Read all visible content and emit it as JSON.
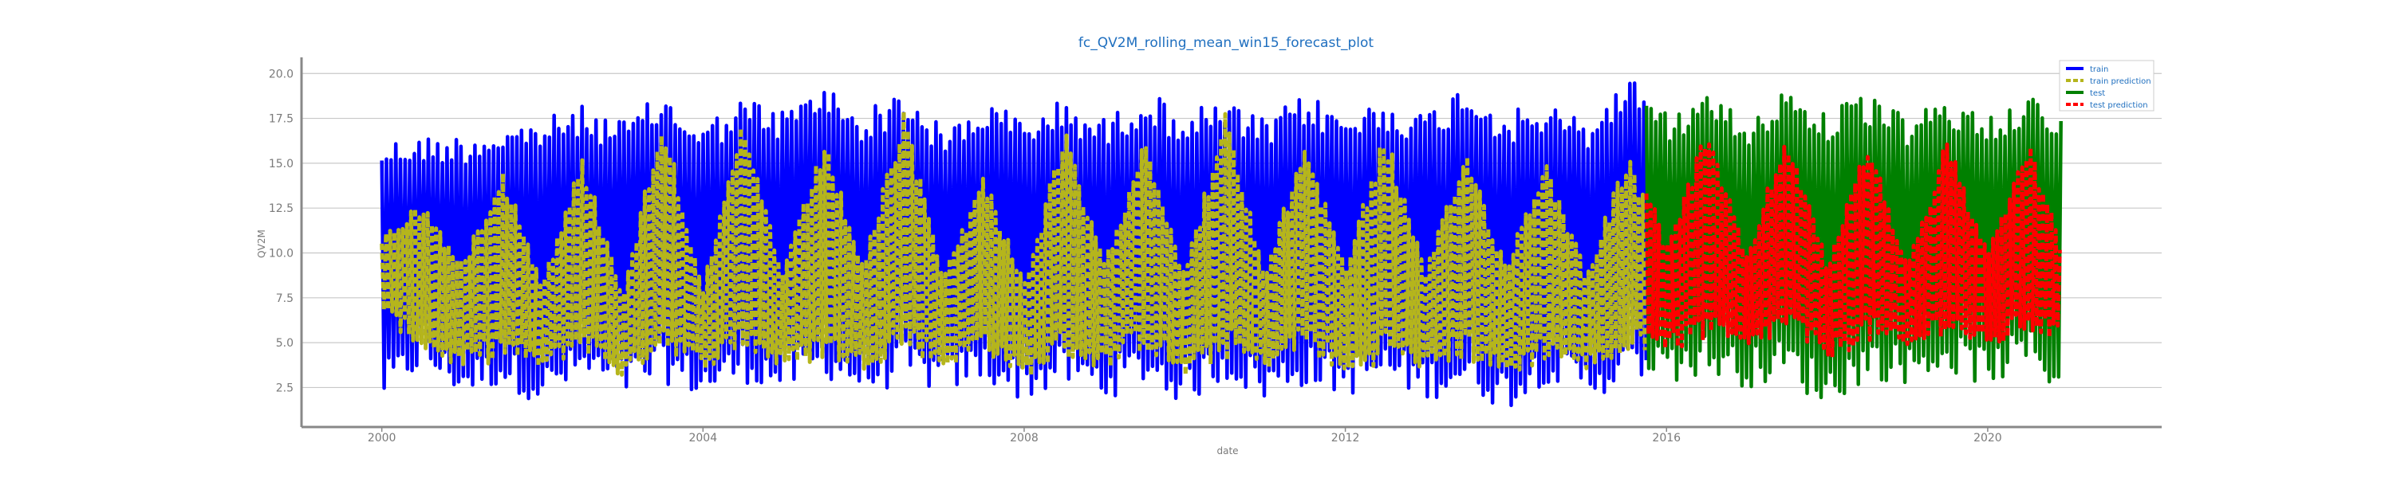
{
  "chart_data": {
    "type": "line",
    "title": "fc_QV2M_rolling_mean_win15_forecast_plot",
    "xlabel": "date",
    "ylabel": "QV2M",
    "xlim": [
      "1999-01-01",
      "2022-03-01"
    ],
    "ylim": [
      0.3,
      20.9
    ],
    "x_ticks": [
      "2000",
      "2004",
      "2008",
      "2012",
      "2016",
      "2020"
    ],
    "y_ticks": [
      "2.5",
      "5.0",
      "7.5",
      "10.0",
      "12.5",
      "15.0",
      "17.5",
      "20.0"
    ],
    "grid": "horizontal",
    "legend_position": "top-right",
    "series": [
      {
        "name": "train",
        "color": "#0000ff",
        "x": [
          "2000-01",
          "2000-07",
          "2001-01",
          "2001-07",
          "2002-01",
          "2002-07",
          "2003-01",
          "2003-07",
          "2004-01",
          "2004-07",
          "2005-01",
          "2005-07",
          "2006-01",
          "2006-07",
          "2007-01",
          "2007-07",
          "2008-01",
          "2008-07",
          "2009-01",
          "2009-07",
          "2010-01",
          "2010-07",
          "2011-01",
          "2011-07",
          "2012-01",
          "2012-07",
          "2013-01",
          "2013-07",
          "2014-01",
          "2014-07",
          "2015-01",
          "2015-07",
          "2015-10"
        ],
        "upper": [
          16.3,
          16.5,
          16.6,
          17.1,
          17.5,
          18.2,
          17.4,
          18.9,
          17.2,
          18.7,
          18.0,
          19.5,
          17.9,
          19.2,
          16.9,
          18.5,
          17.6,
          18.6,
          17.5,
          19.1,
          17.9,
          18.5,
          17.4,
          18.9,
          17.8,
          18.6,
          17.8,
          19.6,
          17.9,
          18.3,
          17.4,
          19.8,
          19.5
        ],
        "lower": [
          1.7,
          3.5,
          2.0,
          2.6,
          1.5,
          2.8,
          1.9,
          2.8,
          1.8,
          2.8,
          2.1,
          3.1,
          2.0,
          2.7,
          2.2,
          2.8,
          1.7,
          2.6,
          1.8,
          2.7,
          1.5,
          2.9,
          1.7,
          2.6,
          2.0,
          2.7,
          1.8,
          2.3,
          1.2,
          2.8,
          1.9,
          2.5,
          3.0
        ]
      },
      {
        "name": "train prediction",
        "color": "#b5b51c",
        "x": [
          "2000-01",
          "2000-07",
          "2001-01",
          "2001-07",
          "2002-01",
          "2002-07",
          "2003-01",
          "2003-07",
          "2004-01",
          "2004-07",
          "2005-01",
          "2005-07",
          "2006-01",
          "2006-07",
          "2007-01",
          "2007-07",
          "2008-01",
          "2008-07",
          "2009-01",
          "2009-07",
          "2010-01",
          "2010-07",
          "2011-01",
          "2011-07",
          "2012-01",
          "2012-07",
          "2013-01",
          "2013-07",
          "2014-01",
          "2014-07",
          "2015-01",
          "2015-07",
          "2015-10"
        ],
        "upper": [
          11.0,
          13.0,
          9.5,
          15.0,
          8.5,
          15.5,
          8.0,
          18.0,
          8.2,
          17.5,
          9.0,
          16.5,
          9.5,
          18.0,
          9.0,
          14.5,
          8.5,
          17.0,
          9.5,
          17.0,
          9.0,
          18.0,
          9.0,
          16.5,
          9.5,
          17.0,
          9.0,
          16.0,
          9.5,
          15.5,
          9.0,
          15.5,
          13.5
        ],
        "lower": [
          6.5,
          4.5,
          3.5,
          4.0,
          3.5,
          4.5,
          3.0,
          4.5,
          3.5,
          4.5,
          3.5,
          4.0,
          3.5,
          4.5,
          3.5,
          4.5,
          3.0,
          4.0,
          3.5,
          4.5,
          3.0,
          4.0,
          3.5,
          4.5,
          3.0,
          4.0,
          3.5,
          4.0,
          3.0,
          4.0,
          3.5,
          4.0,
          4.5
        ]
      },
      {
        "name": "test",
        "color": "#008000",
        "x": [
          "2015-10",
          "2016-01",
          "2016-07",
          "2017-01",
          "2017-07",
          "2018-01",
          "2018-07",
          "2019-01",
          "2019-07",
          "2020-01",
          "2020-07",
          "2020-12"
        ],
        "upper": [
          18.3,
          17.8,
          19.0,
          17.5,
          19.4,
          18.0,
          18.8,
          17.6,
          18.5,
          17.8,
          19.0,
          17.5
        ],
        "lower": [
          3.5,
          2.8,
          3.2,
          2.5,
          2.9,
          1.3,
          3.0,
          2.7,
          3.4,
          2.5,
          3.6,
          2.0
        ]
      },
      {
        "name": "test prediction",
        "color": "#ff0000",
        "x": [
          "2015-10",
          "2016-01",
          "2016-07",
          "2017-01",
          "2017-07",
          "2018-01",
          "2018-07",
          "2019-01",
          "2019-07",
          "2020-01",
          "2020-07",
          "2020-12"
        ],
        "upper": [
          14.0,
          10.5,
          17.0,
          10.0,
          17.0,
          9.5,
          16.5,
          9.5,
          16.5,
          10.0,
          16.5,
          10.5
        ],
        "lower": [
          5.0,
          4.5,
          5.0,
          4.5,
          5.5,
          4.0,
          5.0,
          4.5,
          5.5,
          4.5,
          5.5,
          5.0
        ]
      }
    ]
  }
}
